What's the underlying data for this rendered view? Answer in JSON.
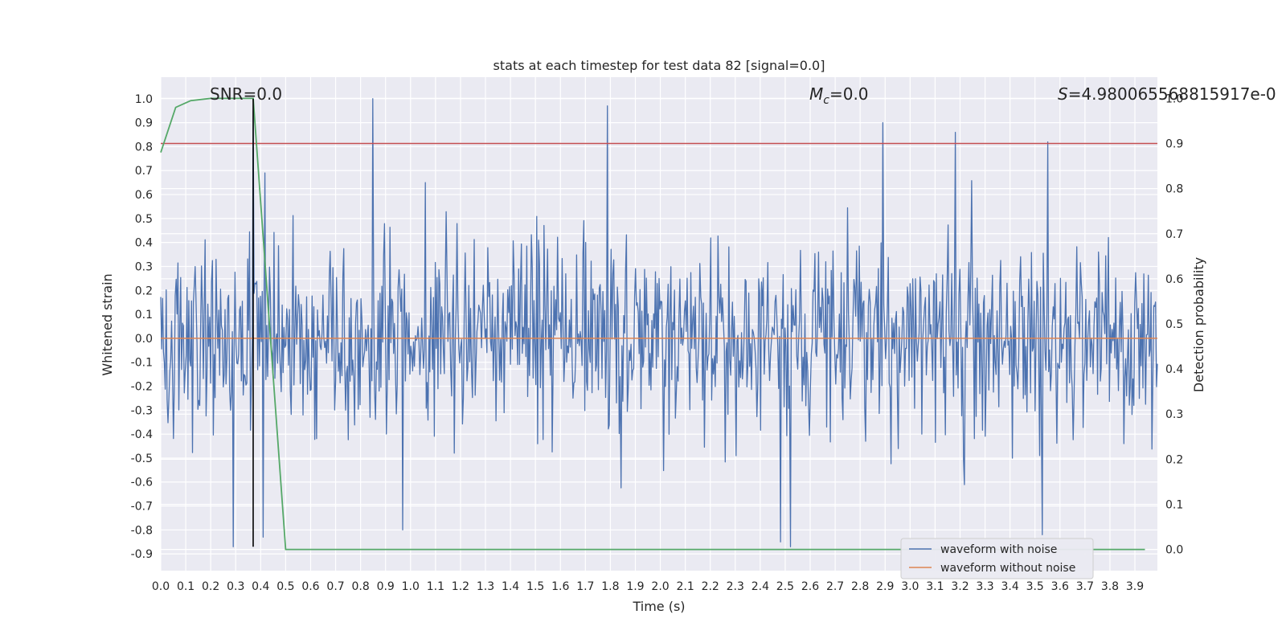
{
  "chart_data": {
    "type": "line",
    "title": "stats at each timestep for test data 82 [signal=0.0]",
    "xlabel": "Time (s)",
    "ylabel": "Whitened strain",
    "ylabel_right": "Detection probability",
    "xlim": [
      0.0,
      3.99
    ],
    "ylim": [
      -0.97,
      1.09
    ],
    "ylim_right": [
      -0.047,
      1.047
    ],
    "x_ticks": [
      "0.0",
      "0.1",
      "0.2",
      "0.3",
      "0.4",
      "0.5",
      "0.6",
      "0.7",
      "0.8",
      "0.9",
      "1.0",
      "1.1",
      "1.2",
      "1.3",
      "1.4",
      "1.5",
      "1.6",
      "1.7",
      "1.8",
      "1.9",
      "2.0",
      "2.1",
      "2.2",
      "2.3",
      "2.4",
      "2.5",
      "2.6",
      "2.7",
      "2.8",
      "2.9",
      "3.0",
      "3.1",
      "3.2",
      "3.3",
      "3.4",
      "3.5",
      "3.6",
      "3.7",
      "3.8",
      "3.9"
    ],
    "y_ticks": [
      "1.0",
      "0.9",
      "0.8",
      "0.7",
      "0.6",
      "0.5",
      "0.4",
      "0.3",
      "0.2",
      "0.1",
      "0.0",
      "-0.1",
      "-0.2",
      "-0.3",
      "-0.4",
      "-0.5",
      "-0.6",
      "-0.7",
      "-0.8",
      "-0.9"
    ],
    "y_ticks_right": [
      "1.0",
      "0.9",
      "0.8",
      "0.7",
      "0.6",
      "0.5",
      "0.4",
      "0.3",
      "0.2",
      "0.1",
      "0.0"
    ],
    "grid": true,
    "legend_position": "bottom-right",
    "annotations": {
      "snr": "SNR=0.0",
      "mc_symbol": "M",
      "mc_sub": "c",
      "mc_value": "=0.0",
      "s_symbol": "S",
      "s_value": "=4.980065568815917e-0"
    },
    "series": [
      {
        "name": "waveform with noise",
        "color": "#4c72b0",
        "axis": "left",
        "description": "dense whitened noise trace, roughly uniform amplitude between about -0.6 and 0.6 with spikes",
        "spikes": [
          {
            "x": 0.37,
            "y": 0.95
          },
          {
            "x": 0.85,
            "y": 1.0
          },
          {
            "x": 1.79,
            "y": 0.97
          },
          {
            "x": 2.89,
            "y": 0.9
          },
          {
            "x": 3.18,
            "y": 0.86
          },
          {
            "x": 3.55,
            "y": 0.82
          },
          {
            "x": 2.52,
            "y": -0.87
          },
          {
            "x": 3.53,
            "y": -0.82
          },
          {
            "x": 2.48,
            "y": -0.85
          },
          {
            "x": 0.97,
            "y": -0.8
          },
          {
            "x": 0.29,
            "y": -0.87
          },
          {
            "x": 0.41,
            "y": -0.83
          }
        ]
      },
      {
        "name": "waveform without noise",
        "color": "#dd8452",
        "axis": "left",
        "x": [
          0.0,
          3.99
        ],
        "y": [
          0.0,
          0.0
        ]
      },
      {
        "name": "",
        "color": "#55a868",
        "axis": "right",
        "x": [
          0.0,
          0.06,
          0.12,
          0.2,
          0.25,
          0.3,
          0.37,
          0.5,
          1.0,
          2.0,
          3.0,
          3.94
        ],
        "y": [
          0.88,
          0.98,
          0.995,
          1.0,
          1.0,
          1.0,
          1.0,
          0.0,
          0.0,
          0.0,
          0.0,
          0.0
        ]
      }
    ],
    "threshold": {
      "value": 0.9,
      "color": "#c44e52",
      "axis": "right"
    },
    "vertical_marker": {
      "x": 0.37,
      "color": "#000000",
      "y_from": -0.87,
      "y_to": 1.0
    }
  }
}
